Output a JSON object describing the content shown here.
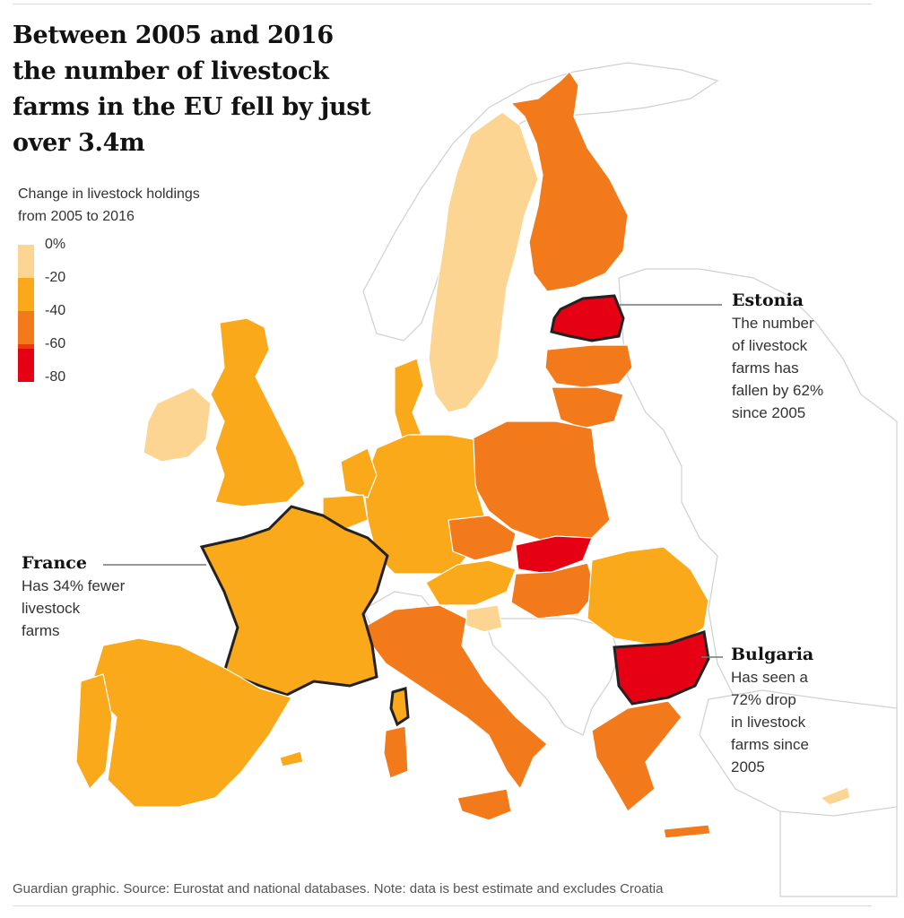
{
  "title_lines": [
    "Between 2005 and 2016",
    "the number of livestock",
    "farms in the EU fell by just",
    "over 3.4m"
  ],
  "legend": {
    "title_lines": [
      "Change in livestock holdings",
      "from 2005 to 2016"
    ],
    "labels": [
      "0%",
      "-20",
      "-40",
      "-60",
      "-80"
    ],
    "colors": [
      "#fcd593",
      "#f9a91a",
      "#f27a1b",
      "#ee3a0b",
      "#e50014"
    ]
  },
  "callouts": {
    "estonia": {
      "head": "Estonia",
      "lines": [
        "The number",
        "of livestock",
        "farms has",
        "fallen by 62%",
        "since 2005"
      ]
    },
    "france": {
      "head": "France",
      "lines": [
        "Has 34% fewer",
        "livestock",
        "farms"
      ]
    },
    "bulgaria": {
      "head": "Bulgaria",
      "lines": [
        "Has seen a",
        "72% drop",
        "in livestock",
        "farms since",
        "2005"
      ]
    }
  },
  "footer": "Guardian graphic. Source: Eurostat and national databases. Note: data is best estimate and excludes Croatia"
}
